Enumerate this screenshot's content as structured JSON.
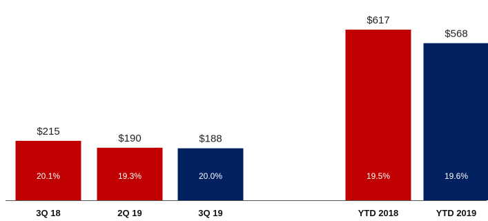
{
  "chart_data": {
    "type": "bar",
    "categories": [
      "3Q 18",
      "2Q 19",
      "3Q 19",
      "YTD 2018",
      "YTD 2019"
    ],
    "values": [
      215,
      190,
      188,
      617,
      568
    ],
    "value_labels": [
      "$215",
      "$190",
      "$188",
      "$617",
      "$568"
    ],
    "percent_labels": [
      "20.1%",
      "19.3%",
      "20.0%",
      "19.5%",
      "19.6%"
    ],
    "bar_colors": [
      "#c00000",
      "#c00000",
      "#002060",
      "#c00000",
      "#002060"
    ],
    "ylim": [
      0,
      700
    ],
    "grid": false,
    "legend": "none",
    "title": "",
    "xlabel": "",
    "ylabel": ""
  },
  "colors": {
    "red": "#c00000",
    "navy": "#002060",
    "axis": "#555555"
  }
}
